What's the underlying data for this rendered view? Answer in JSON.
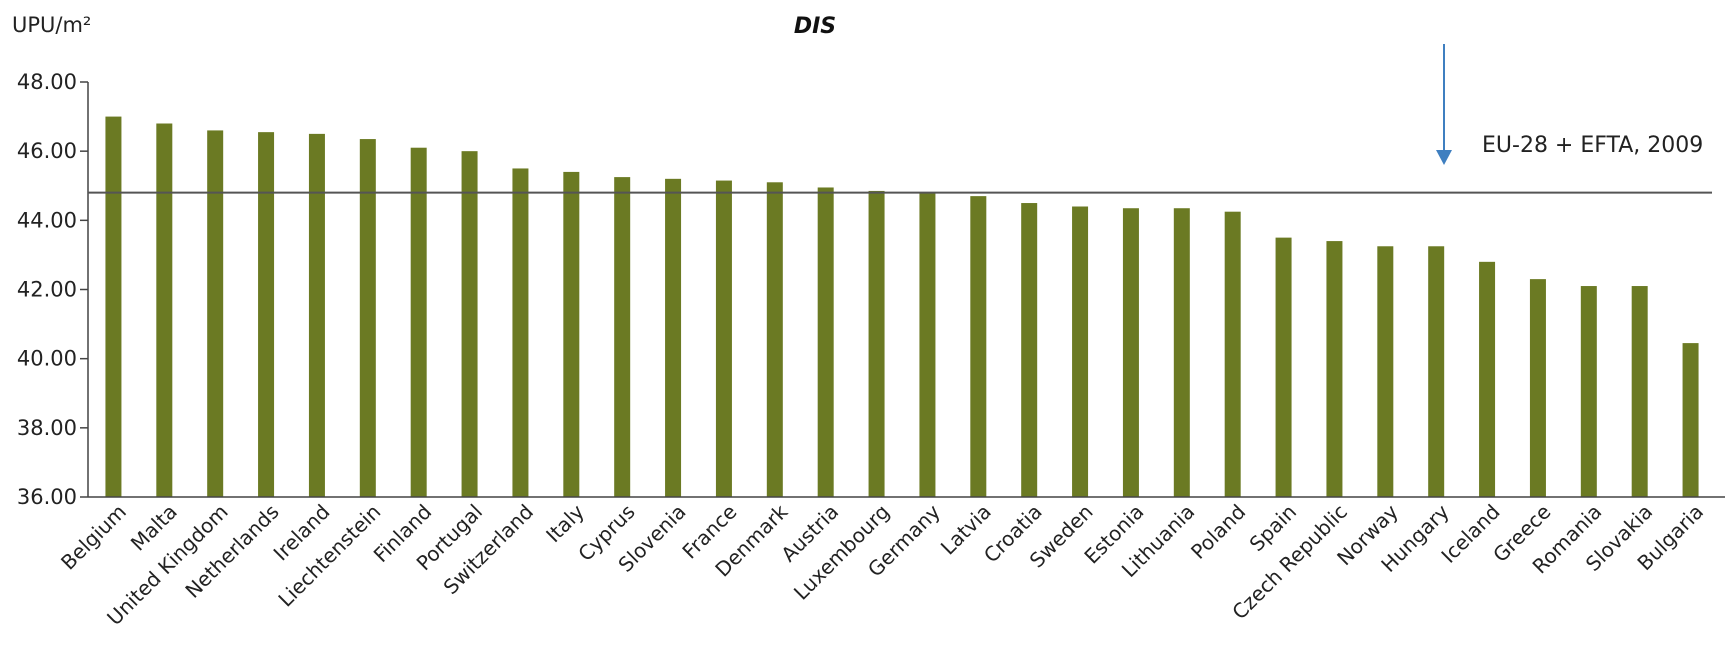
{
  "colors": {
    "bar": "#6b7a23",
    "reference_line": "#555555",
    "arrow": "#3f7fc0",
    "axis": "#444444"
  },
  "chart_data": {
    "type": "bar",
    "title": "DIS",
    "unit_label": "UPU/m²",
    "xlabel": "",
    "ylabel": "",
    "ylim": [
      36,
      48
    ],
    "y_ticks": [
      "36.00",
      "38.00",
      "40.00",
      "42.00",
      "44.00",
      "46.00",
      "48.00"
    ],
    "grid": false,
    "categories": [
      "Belgium",
      "Malta",
      "United Kingdom",
      "Netherlands",
      "Ireland",
      "Liechtenstein",
      "Finland",
      "Portugal",
      "Switzerland",
      "Italy",
      "Cyprus",
      "Slovenia",
      "France",
      "Denmark",
      "Austria",
      "Luxembourg",
      "Germany",
      "Latvia",
      "Croatia",
      "Sweden",
      "Estonia",
      "Lithuania",
      "Poland",
      "Spain",
      "Czech Republic",
      "Norway",
      "Hungary",
      "Iceland",
      "Greece",
      "Romania",
      "Slovakia",
      "Bulgaria"
    ],
    "values": [
      47.0,
      46.8,
      46.6,
      46.55,
      46.5,
      46.35,
      46.1,
      46.0,
      45.5,
      45.4,
      45.25,
      45.2,
      45.15,
      45.1,
      44.95,
      44.85,
      44.8,
      44.7,
      44.5,
      44.4,
      44.35,
      44.35,
      44.25,
      43.5,
      43.4,
      43.25,
      43.25,
      42.8,
      42.3,
      42.1,
      42.1,
      40.45
    ],
    "reference": {
      "label": "EU-28 + EFTA, 2009",
      "value": 44.8
    }
  }
}
